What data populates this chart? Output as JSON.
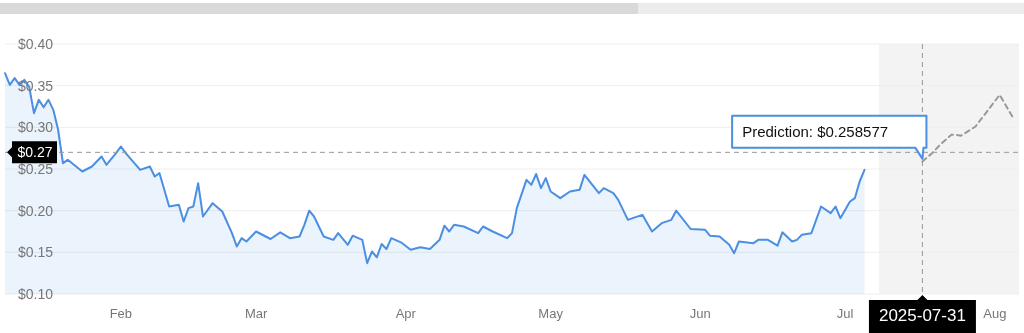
{
  "chart_data": {
    "type": "line",
    "xlim": [
      "2025-01-22",
      "2025-08-20"
    ],
    "xticks": [
      {
        "value": "2025-02-15",
        "label": "Feb"
      },
      {
        "value": "2025-03-15",
        "label": "Mar"
      },
      {
        "value": "2025-04-15",
        "label": "Apr"
      },
      {
        "value": "2025-05-15",
        "label": "May"
      },
      {
        "value": "2025-06-15",
        "label": "Jun"
      },
      {
        "value": "2025-07-15",
        "label": "Jul"
      },
      {
        "value": "2025-08-15",
        "label": "Aug"
      }
    ],
    "ylim": [
      0.1,
      0.4
    ],
    "yticks": [
      {
        "value": 0.1,
        "label": "$0.10"
      },
      {
        "value": 0.15,
        "label": "$0.15"
      },
      {
        "value": 0.2,
        "label": "$0.20"
      },
      {
        "value": 0.25,
        "label": "$0.25"
      },
      {
        "value": 0.3,
        "label": "$0.30"
      },
      {
        "value": 0.35,
        "label": "$0.35"
      },
      {
        "value": 0.4,
        "label": "$0.40"
      }
    ],
    "grid": "y",
    "series": [
      {
        "type": "area",
        "color": "#4a8fe2",
        "x": [
          "2025-01-22",
          "2025-01-23",
          "2025-01-24",
          "2025-01-25",
          "2025-01-26",
          "2025-01-27",
          "2025-01-28",
          "2025-01-29",
          "2025-01-30",
          "2025-01-31",
          "2025-02-01",
          "2025-02-02",
          "2025-02-03",
          "2025-02-04",
          "2025-02-07",
          "2025-02-09",
          "2025-02-11",
          "2025-02-12",
          "2025-02-14",
          "2025-02-15",
          "2025-02-16",
          "2025-02-19",
          "2025-02-21",
          "2025-02-22",
          "2025-02-23",
          "2025-02-25",
          "2025-02-27",
          "2025-02-28",
          "2025-03-01",
          "2025-03-02",
          "2025-03-03",
          "2025-03-04",
          "2025-03-06",
          "2025-03-08",
          "2025-03-10",
          "2025-03-11",
          "2025-03-12",
          "2025-03-13",
          "2025-03-15",
          "2025-03-17",
          "2025-03-18",
          "2025-03-20",
          "2025-03-22",
          "2025-03-24",
          "2025-03-25",
          "2025-03-26",
          "2025-03-27",
          "2025-03-29",
          "2025-03-31",
          "2025-04-01",
          "2025-04-03",
          "2025-04-04",
          "2025-04-06",
          "2025-04-07",
          "2025-04-08",
          "2025-04-09",
          "2025-04-10",
          "2025-04-11",
          "2025-04-12",
          "2025-04-14",
          "2025-04-16",
          "2025-04-18",
          "2025-04-20",
          "2025-04-22",
          "2025-04-23",
          "2025-04-24",
          "2025-04-25",
          "2025-04-27",
          "2025-04-30",
          "2025-05-01",
          "2025-05-03",
          "2025-05-06",
          "2025-05-07",
          "2025-05-08",
          "2025-05-10",
          "2025-05-11",
          "2025-05-12",
          "2025-05-13",
          "2025-05-14",
          "2025-05-15",
          "2025-05-17",
          "2025-05-19",
          "2025-05-21",
          "2025-05-22",
          "2025-05-25",
          "2025-05-26",
          "2025-05-28",
          "2025-05-29",
          "2025-05-31",
          "2025-06-01",
          "2025-06-03",
          "2025-06-05",
          "2025-06-07",
          "2025-06-09",
          "2025-06-10",
          "2025-06-13",
          "2025-06-16",
          "2025-06-17",
          "2025-06-19",
          "2025-06-21",
          "2025-06-22",
          "2025-06-23",
          "2025-06-26",
          "2025-06-27",
          "2025-06-29",
          "2025-07-01",
          "2025-07-02",
          "2025-07-04",
          "2025-07-05",
          "2025-07-06",
          "2025-07-08",
          "2025-07-10",
          "2025-07-12",
          "2025-07-13",
          "2025-07-14",
          "2025-07-16",
          "2025-07-17",
          "2025-07-18",
          "2025-07-19"
        ],
        "values": [
          0.365,
          0.351,
          0.359,
          0.351,
          0.357,
          0.349,
          0.317,
          0.333,
          0.324,
          0.333,
          0.321,
          0.297,
          0.257,
          0.261,
          0.247,
          0.253,
          0.265,
          0.255,
          0.269,
          0.277,
          0.269,
          0.249,
          0.253,
          0.241,
          0.245,
          0.205,
          0.207,
          0.187,
          0.203,
          0.205,
          0.233,
          0.193,
          0.209,
          0.199,
          0.173,
          0.157,
          0.167,
          0.163,
          0.175,
          0.169,
          0.166,
          0.174,
          0.167,
          0.169,
          0.183,
          0.2,
          0.193,
          0.169,
          0.165,
          0.173,
          0.159,
          0.17,
          0.165,
          0.137,
          0.151,
          0.144,
          0.16,
          0.154,
          0.167,
          0.162,
          0.153,
          0.156,
          0.154,
          0.165,
          0.182,
          0.175,
          0.183,
          0.181,
          0.173,
          0.181,
          0.175,
          0.167,
          0.173,
          0.203,
          0.237,
          0.231,
          0.244,
          0.227,
          0.239,
          0.223,
          0.215,
          0.223,
          0.225,
          0.243,
          0.221,
          0.227,
          0.221,
          0.213,
          0.189,
          0.191,
          0.195,
          0.175,
          0.185,
          0.189,
          0.2,
          0.178,
          0.177,
          0.17,
          0.169,
          0.159,
          0.149,
          0.163,
          0.161,
          0.165,
          0.165,
          0.158,
          0.174,
          0.163,
          0.165,
          0.171,
          0.173,
          0.205,
          0.197,
          0.205,
          0.191,
          0.211,
          0.215,
          0.235,
          0.249
        ]
      },
      {
        "type": "line",
        "color": "#999999",
        "line_style": "dashed",
        "x": [
          "2025-07-31",
          "2025-08-02",
          "2025-08-04",
          "2025-08-06",
          "2025-08-07",
          "2025-08-08",
          "2025-08-11",
          "2025-08-16",
          "2025-08-19"
        ],
        "values": [
          0.259,
          0.269,
          0.281,
          0.291,
          0.291,
          0.29,
          0.301,
          0.339,
          0.309
        ]
      }
    ],
    "bands": [
      {
        "axis": "x",
        "from": "2025-07-22",
        "to": "2025-08-20",
        "color": "#f3f3f3"
      }
    ],
    "ref_lines": [
      {
        "axis": "y",
        "value": 0.27,
        "label": "$0.27",
        "color": "#999999",
        "line_style": "dashed"
      },
      {
        "axis": "x",
        "value": "2025-07-31",
        "label": "2025-07-31",
        "color": "#999999",
        "line_style": "dashed"
      }
    ],
    "annotations": [
      {
        "text": "Prediction: $0.258577",
        "x": "2025-07-31",
        "y": 0.258577
      }
    ]
  }
}
